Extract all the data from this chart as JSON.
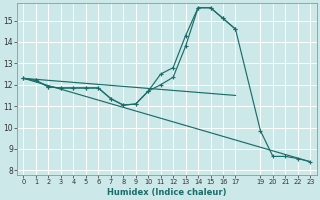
{
  "xlabel": "Humidex (Indice chaleur)",
  "bg_color": "#cce8e8",
  "grid_color": "#ffffff",
  "line_color": "#1a6e6a",
  "xlim": [
    -0.5,
    23.5
  ],
  "ylim": [
    7.8,
    15.8
  ],
  "xtick_positions": [
    0,
    1,
    2,
    3,
    4,
    5,
    6,
    7,
    8,
    9,
    10,
    11,
    12,
    13,
    14,
    15,
    16,
    17,
    19,
    20,
    21,
    22,
    23
  ],
  "xtick_labels": [
    "0",
    "1",
    "2",
    "3",
    "4",
    "5",
    "6",
    "7",
    "8",
    "9",
    "10",
    "11",
    "12",
    "13",
    "14",
    "15",
    "16",
    "17",
    "19",
    "20",
    "21",
    "22",
    "23"
  ],
  "ytick_positions": [
    8,
    9,
    10,
    11,
    12,
    13,
    14,
    15
  ],
  "ytick_labels": [
    "8",
    "9",
    "10",
    "11",
    "12",
    "13",
    "14",
    "15"
  ],
  "series1_x": [
    0,
    1,
    2,
    3,
    4,
    5,
    6,
    7,
    8,
    9,
    10,
    11,
    12,
    13,
    14,
    15,
    16,
    17
  ],
  "series1_y": [
    12.3,
    12.2,
    11.9,
    11.85,
    11.85,
    11.85,
    11.85,
    11.35,
    11.05,
    11.1,
    11.7,
    12.5,
    12.8,
    14.3,
    15.6,
    15.6,
    15.1,
    14.6
  ],
  "series2_x": [
    0,
    1,
    2,
    3,
    4,
    5,
    6,
    7,
    8,
    9,
    10,
    11,
    12,
    13,
    14,
    15,
    16,
    17,
    19,
    20,
    21,
    22,
    23
  ],
  "series2_y": [
    12.3,
    12.2,
    11.9,
    11.85,
    11.85,
    11.85,
    11.85,
    11.35,
    11.05,
    11.1,
    11.7,
    12.0,
    12.35,
    13.8,
    15.6,
    15.6,
    15.1,
    14.6,
    9.85,
    8.65,
    8.65,
    8.55,
    8.4
  ],
  "series3_x": [
    0,
    17
  ],
  "series3_y": [
    12.3,
    11.5
  ],
  "series4_x": [
    0,
    23
  ],
  "series4_y": [
    12.3,
    8.4
  ]
}
